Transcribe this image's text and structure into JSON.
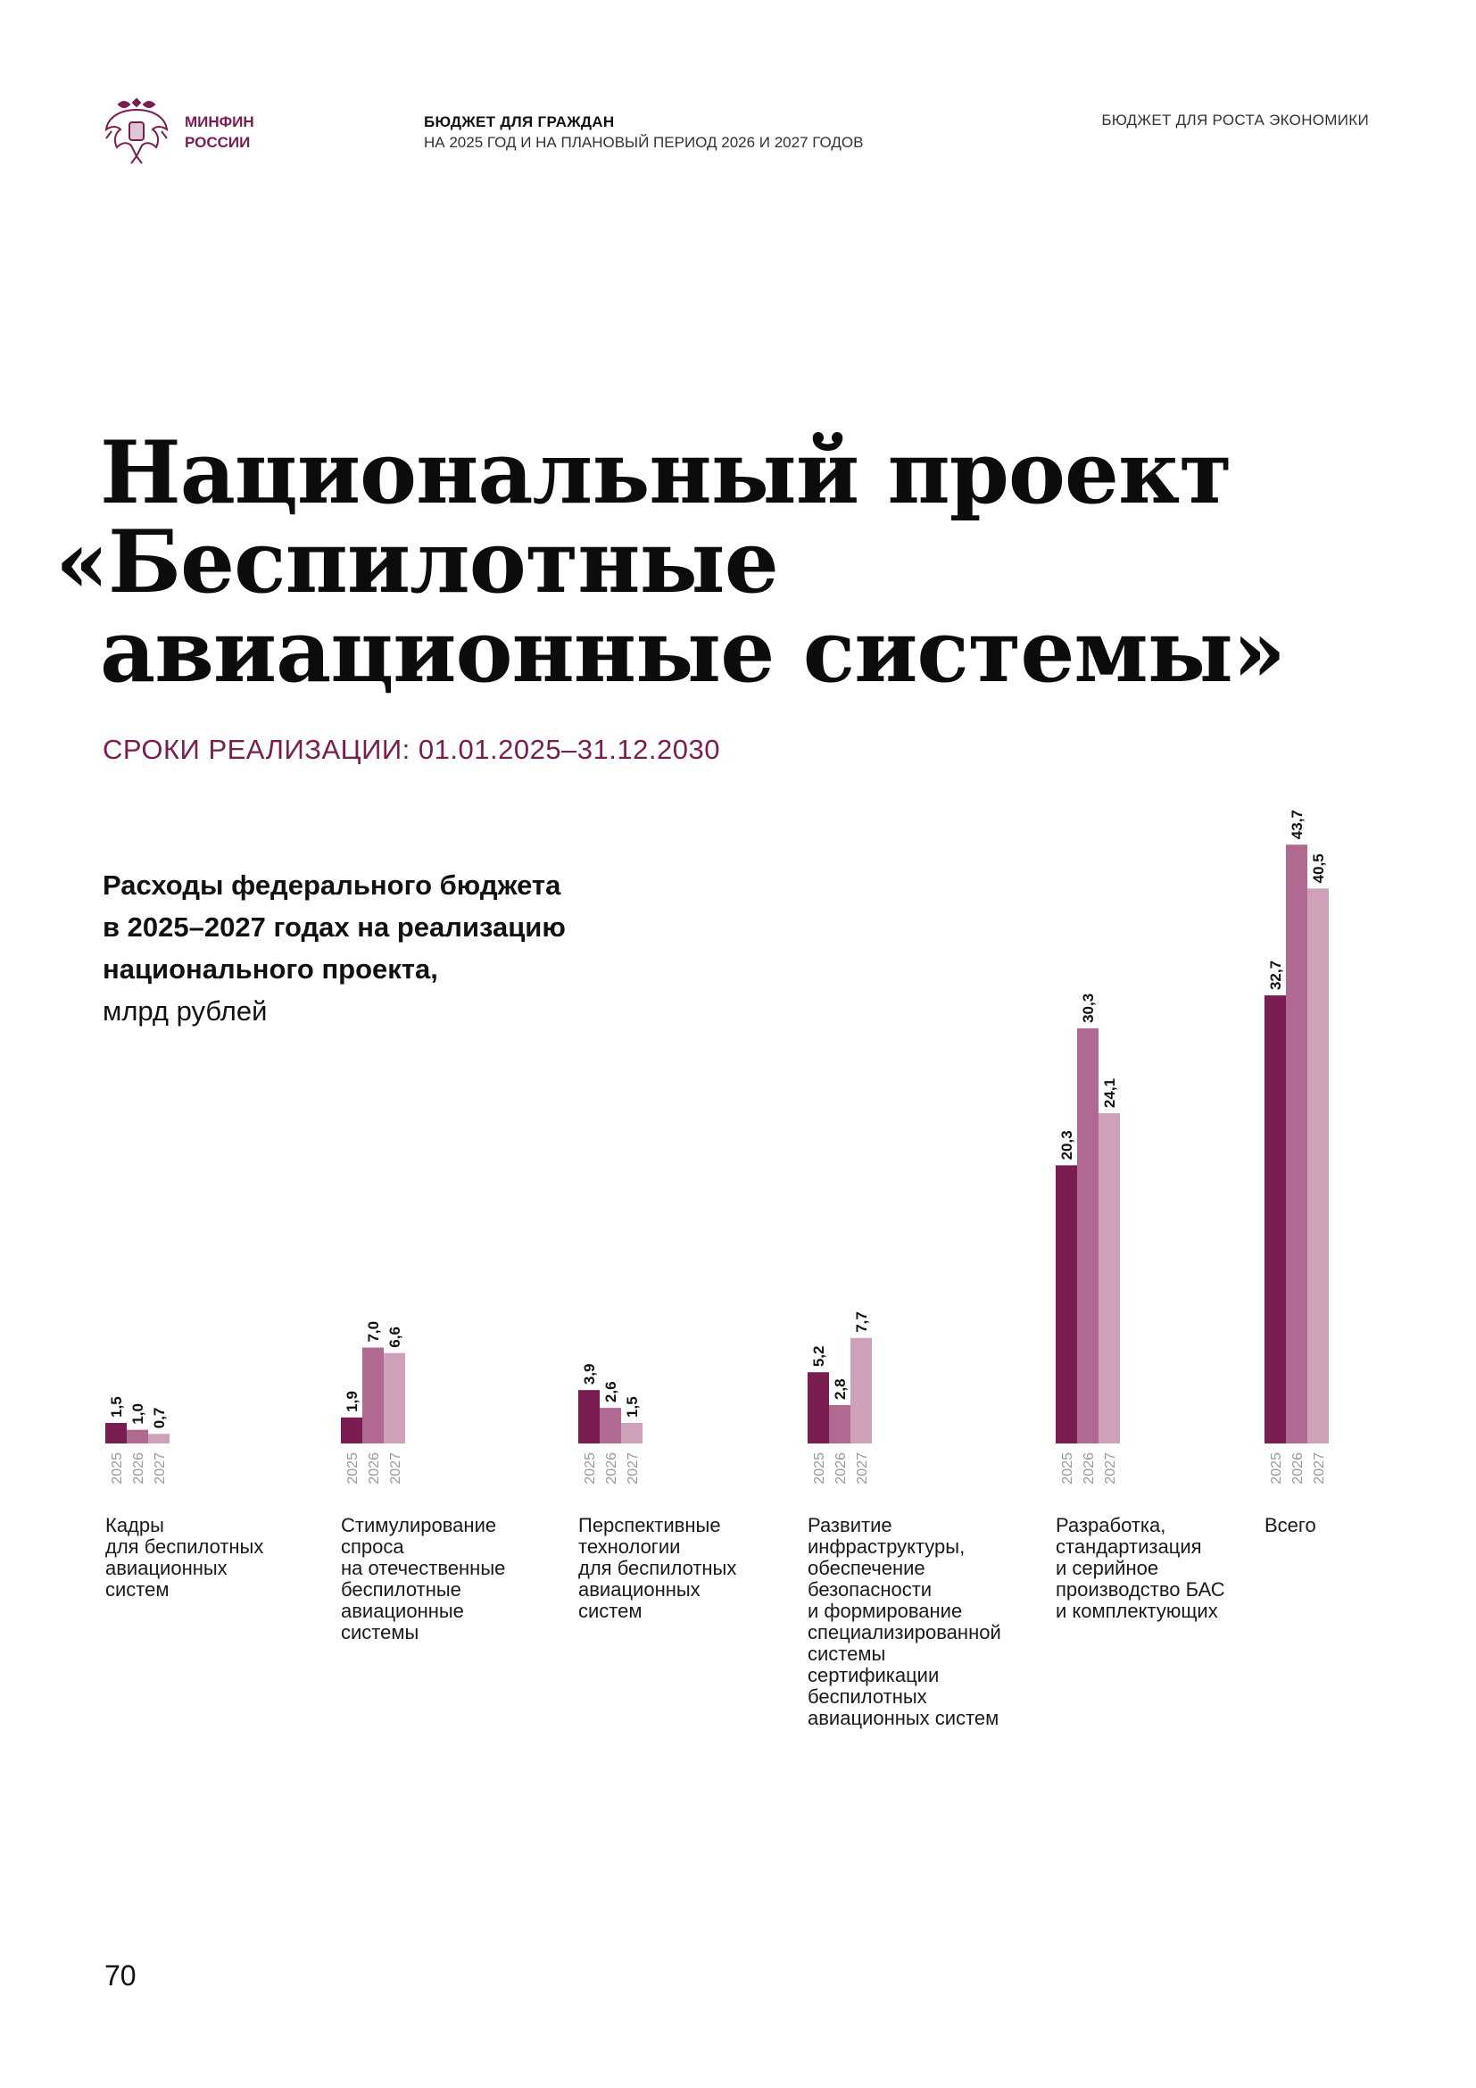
{
  "header": {
    "org_line1": "МИНФИН",
    "org_line2": "РОССИИ",
    "title": "БЮДЖЕТ ДЛЯ ГРАЖДАН",
    "subtitle": "НА 2025 ГОД И НА ПЛАНОВЫЙ ПЕРИОД 2026 И 2027 ГОДОВ",
    "section": "БЮДЖЕТ ДЛЯ РОСТА ЭКОНОМИКИ"
  },
  "title": {
    "line1": "Национальный проект",
    "line2": "«Беспилотные",
    "line3": "авиационные системы»"
  },
  "period": "СРОКИ РЕАЛИЗАЦИИ: 01.01.2025–31.12.2030",
  "subtitle": {
    "line1": "Расходы федерального бюджета",
    "line2": "в 2025–2027 годах на реализацию",
    "line3": "национального проекта,",
    "unit": "млрд рублей"
  },
  "colors": {
    "accent": "#7a1d50",
    "y2025": "#7a1d50",
    "y2026": "#b06a92",
    "y2027": "#cfa0ba"
  },
  "chart_data": {
    "type": "bar",
    "years": [
      "2025",
      "2026",
      "2027"
    ],
    "groups": [
      {
        "label": "Кадры для беспилотных авиационных систем",
        "lines": [
          "Кадры",
          "для беспилотных",
          "авиационных",
          "систем"
        ],
        "values": [
          1.5,
          1.0,
          0.7
        ],
        "labels": [
          "1,5",
          "1,0",
          "0,7"
        ]
      },
      {
        "label": "Стимулирование спроса на отечественные беспилотные авиационные системы",
        "lines": [
          "Стимулирование",
          "спроса",
          "на отечественные",
          "беспилотные",
          "авиационные",
          "системы"
        ],
        "values": [
          1.9,
          7.0,
          6.6
        ],
        "labels": [
          "1,9",
          "7,0",
          "6,6"
        ]
      },
      {
        "label": "Перспективные технологии для беспилотных авиационных систем",
        "lines": [
          "Перспективные",
          "технологии",
          "для беспилотных",
          "авиационных",
          "систем"
        ],
        "values": [
          3.9,
          2.6,
          1.5
        ],
        "labels": [
          "3,9",
          "2,6",
          "1,5"
        ]
      },
      {
        "label": "Развитие инфраструктуры, обеспечение безопасности и формирование специализированной системы сертификации беспилотных авиационных систем",
        "lines": [
          "Развитие",
          "инфраструктуры,",
          "обеспечение",
          "безопасности",
          "и формирование",
          "специализированной",
          "системы",
          "сертификации",
          "беспилотных",
          "авиационных систем"
        ],
        "values": [
          5.2,
          2.8,
          7.7
        ],
        "labels": [
          "5,2",
          "2,8",
          "7,7"
        ]
      },
      {
        "label": "Разработка, стандартизация и серийное производство БАС и комплектующих",
        "lines": [
          "Разработка,",
          "стандартизация",
          "и серийное",
          "производство БАС",
          "и комплектующих"
        ],
        "values": [
          20.3,
          30.3,
          24.1
        ],
        "labels": [
          "20,3",
          "30,3",
          "24,1"
        ]
      },
      {
        "label": "Всего",
        "lines": [
          "Всего"
        ],
        "values": [
          32.7,
          43.7,
          40.5
        ],
        "labels": [
          "32,7",
          "43,7",
          "40,5"
        ]
      }
    ],
    "unit": "млрд рублей"
  },
  "page_number": "70"
}
